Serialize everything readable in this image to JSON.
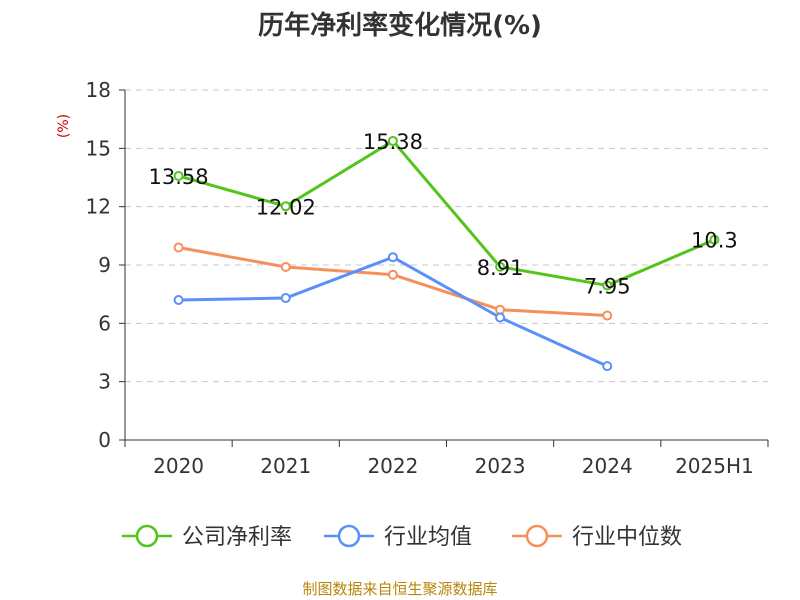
{
  "chart_data": {
    "type": "line",
    "title": "历年净利率变化情况(%)",
    "unit": "(%)",
    "categories": [
      "2020",
      "2021",
      "2022",
      "2023",
      "2024",
      "2025H1"
    ],
    "ylim": [
      0,
      18
    ],
    "yticks": [
      0,
      3,
      6,
      9,
      12,
      15,
      18
    ],
    "grid": true,
    "legend_position": "bottom",
    "series": [
      {
        "name": "公司净利率",
        "color": "#52c41a",
        "values": [
          13.58,
          12.02,
          15.38,
          8.91,
          7.95,
          10.3
        ],
        "labels": [
          "13.58",
          "12.02",
          "15.38",
          "8.91",
          "7.95",
          "10.3"
        ]
      },
      {
        "name": "行业均值",
        "color": "#5b8ff9",
        "values": [
          7.2,
          7.3,
          9.4,
          6.3,
          3.8,
          null
        ]
      },
      {
        "name": "行业中位数",
        "color": "#f6905a",
        "values": [
          9.9,
          8.9,
          8.5,
          6.7,
          6.4,
          null
        ]
      }
    ]
  },
  "footer": "制图数据来自恒生聚源数据库"
}
